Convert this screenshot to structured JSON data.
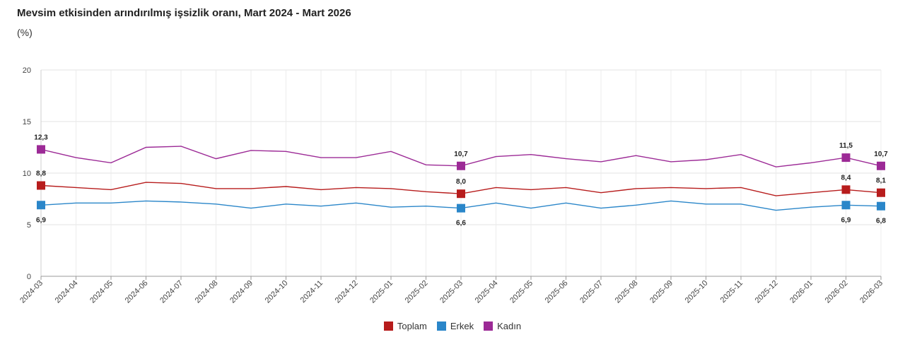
{
  "header": {
    "title": "Mevsim etkisinden arındırılmış işsizlik oranı, Mart 2024 - Mart 2026",
    "unit": "(%)"
  },
  "chart_data": {
    "type": "line",
    "title": "Mevsim etkisinden arındırılmış işsizlik oranı, Mart 2024 - Mart 2026",
    "ylabel": "(%)",
    "xlabel": "",
    "ylim": [
      0,
      20
    ],
    "yticks": [
      0,
      5,
      10,
      15,
      20
    ],
    "grid": true,
    "legend_position": "bottom",
    "categories": [
      "2024-03",
      "2024-04",
      "2024-05",
      "2024-06",
      "2024-07",
      "2024-08",
      "2024-09",
      "2024-10",
      "2024-11",
      "2024-12",
      "2025-01",
      "2025-02",
      "2025-03",
      "2025-04",
      "2025-05",
      "2025-06",
      "2025-07",
      "2025-08",
      "2025-09",
      "2025-10",
      "2025-11",
      "2025-12",
      "2026-01",
      "2026-02",
      "2026-03"
    ],
    "series": [
      {
        "name": "Toplam",
        "color": "#b71c1c",
        "values": [
          8.8,
          8.6,
          8.4,
          9.1,
          9.0,
          8.5,
          8.5,
          8.7,
          8.4,
          8.6,
          8.5,
          8.2,
          8.0,
          8.6,
          8.4,
          8.6,
          8.1,
          8.5,
          8.6,
          8.5,
          8.6,
          7.8,
          8.1,
          8.4,
          8.1
        ],
        "markers": [
          {
            "index": 0,
            "label": "8,8",
            "pos": "above"
          },
          {
            "index": 12,
            "label": "8,0",
            "pos": "above"
          },
          {
            "index": 23,
            "label": "8,4",
            "pos": "above"
          },
          {
            "index": 24,
            "label": "8,1",
            "pos": "above"
          }
        ]
      },
      {
        "name": "Erkek",
        "color": "#2a86c9",
        "values": [
          6.9,
          7.1,
          7.1,
          7.3,
          7.2,
          7.0,
          6.6,
          7.0,
          6.8,
          7.1,
          6.7,
          6.8,
          6.6,
          7.1,
          6.6,
          7.1,
          6.6,
          6.9,
          7.3,
          7.0,
          7.0,
          6.4,
          6.7,
          6.9,
          6.8
        ],
        "markers": [
          {
            "index": 0,
            "label": "6,9",
            "pos": "below"
          },
          {
            "index": 12,
            "label": "6,6",
            "pos": "below"
          },
          {
            "index": 23,
            "label": "6,9",
            "pos": "below"
          },
          {
            "index": 24,
            "label": "6,8",
            "pos": "below"
          }
        ]
      },
      {
        "name": "Kadın",
        "color": "#9c2a96",
        "values": [
          12.3,
          11.5,
          11.0,
          12.5,
          12.6,
          11.4,
          12.2,
          12.1,
          11.5,
          11.5,
          12.1,
          10.8,
          10.7,
          11.6,
          11.8,
          11.4,
          11.1,
          11.7,
          11.1,
          11.3,
          11.8,
          10.6,
          11.0,
          11.5,
          10.7
        ],
        "markers": [
          {
            "index": 0,
            "label": "12,3",
            "pos": "above"
          },
          {
            "index": 12,
            "label": "10,7",
            "pos": "above"
          },
          {
            "index": 23,
            "label": "11,5",
            "pos": "above"
          },
          {
            "index": 24,
            "label": "10,7",
            "pos": "above"
          }
        ]
      }
    ]
  }
}
